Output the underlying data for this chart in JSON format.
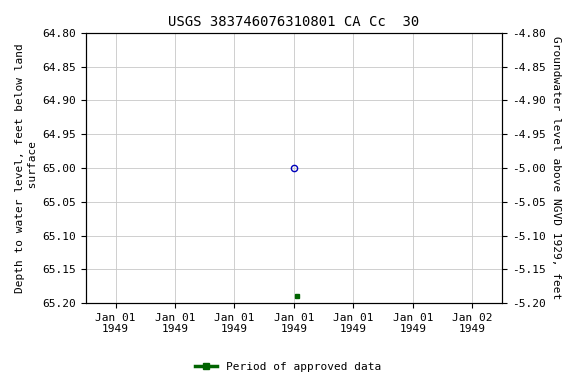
{
  "title": "USGS 383746076310801 CA Cc  30",
  "ylabel_left": "Depth to water level, feet below land\n surface",
  "ylabel_right": "Groundwater level above NGVD 1929, feet",
  "ylim_left": [
    64.8,
    65.2
  ],
  "ylim_right": [
    -4.8,
    -5.2
  ],
  "yticks_left": [
    64.8,
    64.85,
    64.9,
    64.95,
    65.0,
    65.05,
    65.1,
    65.15,
    65.2
  ],
  "yticks_right": [
    -4.8,
    -4.85,
    -4.9,
    -4.95,
    -5.0,
    -5.05,
    -5.1,
    -5.15,
    -5.2
  ],
  "xtick_labels": [
    "Jan 01\n1949",
    "Jan 01\n1949",
    "Jan 01\n1949",
    "Jan 01\n1949",
    "Jan 01\n1949",
    "Jan 01\n1949",
    "Jan 02\n1949"
  ],
  "xtick_positions": [
    0,
    1,
    2,
    3,
    4,
    5,
    6
  ],
  "xlim": [
    -0.5,
    6.5
  ],
  "point_blue_x": 3.0,
  "point_blue_y": 65.0,
  "point_green_x": 3.05,
  "point_green_y": 65.19,
  "point_blue_color": "#0000bb",
  "point_green_color": "#006400",
  "legend_label": "Period of approved data",
  "legend_color": "#006400",
  "background_color": "#ffffff",
  "grid_color": "#c8c8c8",
  "title_fontsize": 10,
  "axis_fontsize": 8,
  "tick_fontsize": 8
}
